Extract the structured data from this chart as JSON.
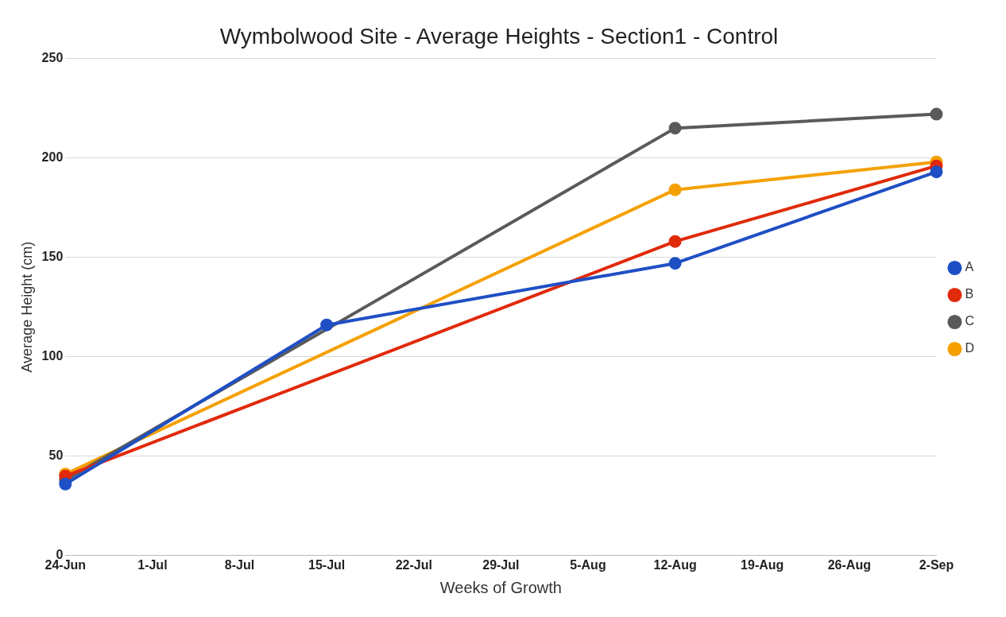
{
  "chart_data": {
    "type": "line",
    "title": "Wymbolwood Site - Average Heights - Section1 - Control",
    "xlabel": "Weeks of Growth",
    "ylabel": "Average Height (cm)",
    "series": [
      {
        "name": "A",
        "color": "#1f4fc4",
        "x": [
          "--06-24",
          "--07-15",
          "--08-12",
          "--09-02"
        ],
        "values": [
          36,
          116,
          147,
          193
        ]
      },
      {
        "name": "B",
        "color": "#e02a0a",
        "x": [
          "--06-24",
          "--08-12",
          "--09-02"
        ],
        "values": [
          40,
          158,
          196
        ]
      },
      {
        "name": "C",
        "color": "#5a5a5a",
        "x": [
          "--06-24",
          "--08-12",
          "--09-02"
        ],
        "values": [
          38,
          215,
          222
        ]
      },
      {
        "name": "D",
        "color": "#f5a000",
        "x": [
          "--06-24",
          "--08-12",
          "--09-02"
        ],
        "values": [
          41,
          184,
          198
        ]
      }
    ],
    "xlim": [
      "--06-24",
      "--09-02"
    ],
    "xticks": [
      {
        "value": "--06-24",
        "label": "24-Jun"
      },
      {
        "value": "--07-01",
        "label": "1-Jul"
      },
      {
        "value": "--07-08",
        "label": "8-Jul"
      },
      {
        "value": "--07-15",
        "label": "15-Jul"
      },
      {
        "value": "--07-22",
        "label": "22-Jul"
      },
      {
        "value": "--07-29",
        "label": "29-Jul"
      },
      {
        "value": "--08-05",
        "label": "5-Aug"
      },
      {
        "value": "--08-12",
        "label": "12-Aug"
      },
      {
        "value": "--08-19",
        "label": "19-Aug"
      },
      {
        "value": "--08-26",
        "label": "26-Aug"
      },
      {
        "value": "--09-02",
        "label": "2-Sep"
      }
    ],
    "ylim": [
      0,
      250
    ],
    "yticks": [
      0,
      50,
      100,
      150,
      200,
      250
    ],
    "grid": "y",
    "legend": "right",
    "marker": "circle",
    "line_style": "solid"
  }
}
